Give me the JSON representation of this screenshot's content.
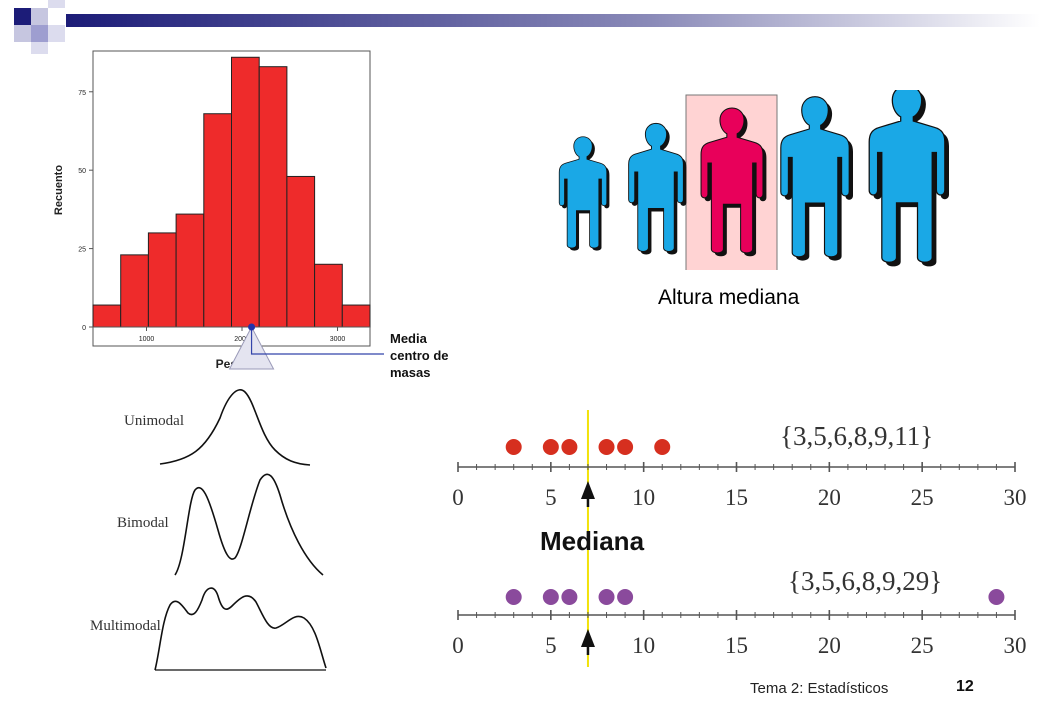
{
  "slide": {
    "footer_title": "Tema 2: Estadísticos",
    "page_number": "12",
    "colors": {
      "bar": "#ee2b2b",
      "banner_dark": "#1c1c78",
      "person": "#1aa8e6",
      "person_highlight": "#e8005a",
      "highlight_box": "#ffd3d3",
      "dot_red": "#d62f1f",
      "dot_purple": "#8a4a9c",
      "median_line": "#f2e20a"
    }
  },
  "histogram": {
    "ylabel": "Recuento",
    "xlabel": "Peso",
    "y_ticks": [
      "0",
      "25",
      "50",
      "75"
    ],
    "x_ticks": [
      "1000",
      "2000",
      "3000"
    ],
    "mean_label_lines": [
      "Media",
      "centro de",
      "masas"
    ]
  },
  "chart_data": {
    "type": "bar",
    "title": "",
    "xlabel": "Peso",
    "ylabel": "Recuento",
    "bin_width": 290,
    "bin_start": 440,
    "values": [
      7,
      23,
      30,
      36,
      68,
      86,
      83,
      48,
      20,
      7
    ],
    "xlim": [
      440,
      3340
    ],
    "ylim": [
      0,
      88
    ],
    "mean": 2100,
    "grid": false
  },
  "heights": {
    "caption": "Altura mediana",
    "people": [
      {
        "icon": "person-icon",
        "highlight": false
      },
      {
        "icon": "person-icon",
        "highlight": false
      },
      {
        "icon": "person-icon",
        "highlight": true
      },
      {
        "icon": "person-icon",
        "highlight": false
      },
      {
        "icon": "person-icon",
        "highlight": false
      }
    ]
  },
  "modality": {
    "labels": [
      "Unimodal",
      "Bimodal",
      "Multimodal"
    ]
  },
  "median_demo": {
    "title": "Mediana",
    "median_value": 7,
    "axis_ticks": [
      "0",
      "5",
      "10",
      "15",
      "20",
      "25",
      "30"
    ],
    "set1_label": "{3,5,6,8,9,11}",
    "set1_values": [
      3,
      5,
      6,
      8,
      9,
      11
    ],
    "set2_label": "{3,5,6,8,9,29}",
    "set2_values": [
      3,
      5,
      6,
      8,
      9,
      29
    ]
  }
}
